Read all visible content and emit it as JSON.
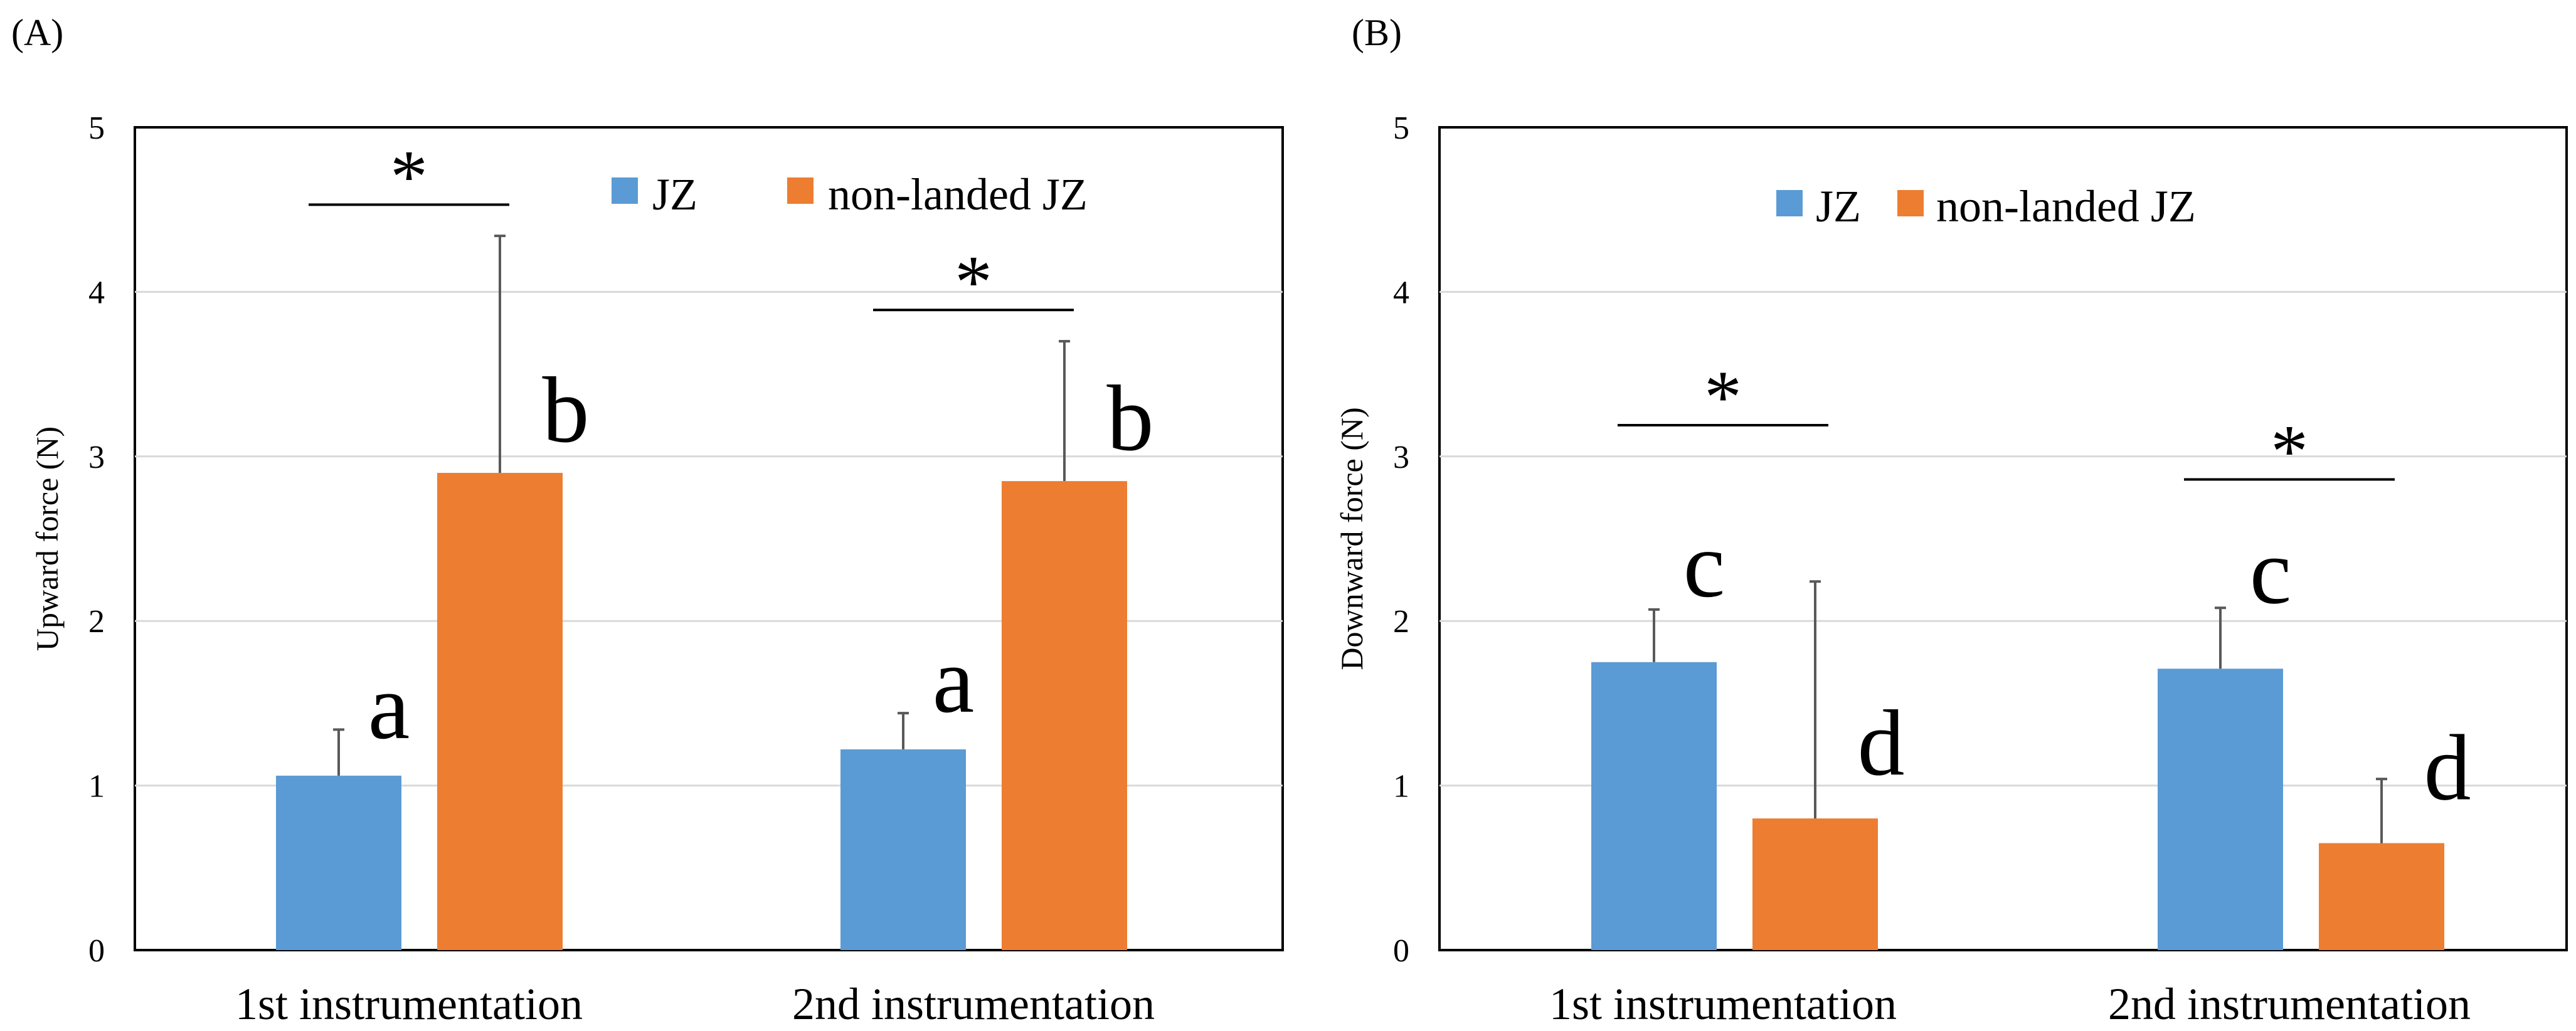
{
  "colors": {
    "jz": "#5B9BD5",
    "nonlanded": "#ED7D31",
    "axis": "#000000",
    "grid": "#D9D9D9",
    "errorbar": "#595959"
  },
  "chart_data": [
    {
      "panel_label": "(A)",
      "type": "bar",
      "title": "",
      "ylabel": "Upward force (N)",
      "ylim": [
        0,
        5
      ],
      "yticks": [
        "0",
        "1",
        "2",
        "3",
        "4",
        "5"
      ],
      "categories": [
        "1st instrumentation",
        "2nd instrumentation"
      ],
      "legend": [
        "JZ",
        "non-landed JZ"
      ],
      "legend_position": "top-right",
      "series": [
        {
          "name": "JZ",
          "values": [
            1.06,
            1.22
          ],
          "errors": [
            0.28,
            0.22
          ],
          "letters": [
            "a",
            "a"
          ]
        },
        {
          "name": "non-landed JZ",
          "values": [
            2.9,
            2.85
          ],
          "errors": [
            1.44,
            0.85
          ],
          "letters": [
            "b",
            "b"
          ]
        }
      ],
      "significance": [
        {
          "label": "*",
          "category": 0,
          "y": 4.53
        },
        {
          "label": "*",
          "category": 1,
          "y": 3.89
        }
      ]
    },
    {
      "panel_label": "(B)",
      "type": "bar",
      "title": "",
      "ylabel": "Downward force (N)",
      "ylim": [
        0,
        5
      ],
      "yticks": [
        "0",
        "1",
        "2",
        "3",
        "4",
        "5"
      ],
      "categories": [
        "1st instrumentation",
        "2nd instrumentation"
      ],
      "legend": [
        "JZ",
        "non-landed JZ"
      ],
      "legend_position": "top-center",
      "series": [
        {
          "name": "JZ",
          "values": [
            1.75,
            1.71
          ],
          "errors": [
            0.32,
            0.37
          ],
          "letters": [
            "c",
            "c"
          ]
        },
        {
          "name": "non-landed JZ",
          "values": [
            0.8,
            0.65
          ],
          "errors": [
            1.44,
            0.39
          ],
          "letters": [
            "d",
            "d"
          ]
        }
      ],
      "significance": [
        {
          "label": "*",
          "category": 0,
          "y": 3.19
        },
        {
          "label": "*",
          "category": 1,
          "y": 2.86
        }
      ]
    }
  ]
}
